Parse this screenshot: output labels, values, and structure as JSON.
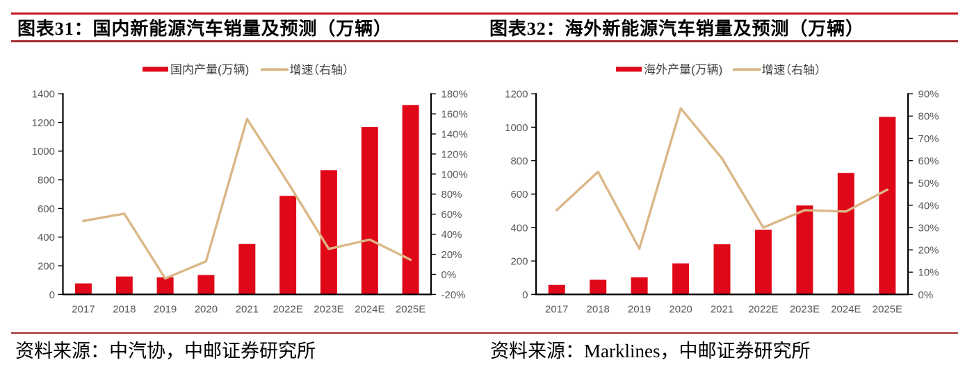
{
  "page": {
    "background": "#ffffff",
    "rule_top_color": "#ca1220",
    "rule_dark_color": "#a02a2e"
  },
  "header": {
    "titles": [
      "图表31：国内新能源汽车销量及预测（万辆）",
      "图表32：海外新能源汽车销量及预测（万辆）"
    ]
  },
  "footer": {
    "sources": [
      "资料来源：中汽协，中邮证券研究所",
      "资料来源：Marklines，中邮证券研究所"
    ]
  },
  "colors": {
    "bar_red": "#e00818",
    "line_tan": "#dbb787",
    "axis_black": "#000000",
    "label_gray": "#595959"
  },
  "chart_data": [
    {
      "type": "bar",
      "title": "图表31：国内新能源汽车销量及预测（万辆）",
      "categories": [
        "2017",
        "2018",
        "2019",
        "2020",
        "2021",
        "2022E",
        "2023E",
        "2024E",
        "2025E"
      ],
      "series": [
        {
          "name": "国内产量(万辆)",
          "type": "bar",
          "axis": "left",
          "color": "#e00818",
          "values": [
            77,
            125,
            120,
            136,
            352,
            688,
            867,
            1168,
            1322
          ]
        },
        {
          "name": "增速（右轴）",
          "type": "line",
          "axis": "right",
          "color": "#dbb787",
          "values": [
            53.3,
            60.5,
            -4.0,
            13.0,
            155.0,
            91.5,
            25.4,
            34.6,
            14.5
          ]
        }
      ],
      "left_axis": {
        "min": 0,
        "max": 1400,
        "step": 200,
        "format": "number"
      },
      "right_axis": {
        "min": -20,
        "max": 180,
        "step": 20,
        "format": "percent"
      },
      "legend_position": "top",
      "gridlines": false,
      "source": "资料来源：中汽协，中邮证券研究所"
    },
    {
      "type": "bar",
      "title": "图表32：海外新能源汽车销量及预测（万辆）",
      "categories": [
        "2017",
        "2018",
        "2019",
        "2020",
        "2021",
        "2022E",
        "2023E",
        "2024E",
        "2025E"
      ],
      "series": [
        {
          "name": "海外产量(万辆)",
          "type": "bar",
          "axis": "left",
          "color": "#e00818",
          "values": [
            57,
            88,
            103,
            186,
            300,
            387,
            532,
            727,
            1062
          ]
        },
        {
          "name": "增速（右轴）",
          "type": "line",
          "axis": "right",
          "color": "#dbb787",
          "values": [
            37.8,
            55.0,
            20.5,
            83.5,
            61.0,
            30.0,
            37.8,
            37.2,
            47.0
          ]
        }
      ],
      "left_axis": {
        "min": 0,
        "max": 1200,
        "step": 200,
        "format": "number"
      },
      "right_axis": {
        "min": 0,
        "max": 90,
        "step": 10,
        "format": "percent"
      },
      "legend_position": "top",
      "gridlines": false,
      "source": "资料来源：Marklines，中邮证券研究所"
    }
  ]
}
